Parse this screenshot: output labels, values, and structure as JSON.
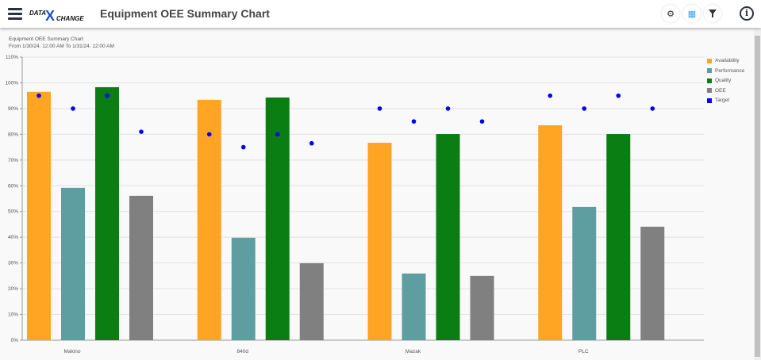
{
  "header": {
    "title": "Equipment OEE Summary Chart",
    "logo_text": "DATA X CHANGE",
    "icons": [
      "menu-icon",
      "gear-icon",
      "grid-icon",
      "filter-icon",
      "info-icon"
    ]
  },
  "chart_data": {
    "type": "bar",
    "title": "Equipment OEE Summary Chart",
    "subtitle": "From 1/30/24, 12:00 AM To 1/31/24, 12:00 AM",
    "categories": [
      "Makino",
      "840d",
      "Mazak",
      "PLC"
    ],
    "ylim": [
      0,
      110
    ],
    "yticks": [
      "0%",
      "10%",
      "20%",
      "30%",
      "40%",
      "50%",
      "60%",
      "70%",
      "80%",
      "90%",
      "100%",
      "110%"
    ],
    "grid": true,
    "legend_position": "right",
    "series": [
      {
        "name": "Availability",
        "color": "#ffa423",
        "values": [
          96.5,
          93.4,
          76.7,
          83.5
        ]
      },
      {
        "name": "Performance",
        "color": "#5f9ea0",
        "values": [
          59.2,
          39.8,
          25.9,
          51.8
        ]
      },
      {
        "name": "Quality",
        "color": "#0a7e12",
        "values": [
          98.3,
          94.3,
          80.1,
          80.1
        ]
      },
      {
        "name": "OEE",
        "color": "#808080",
        "values": [
          56.1,
          29.9,
          25.0,
          44.1
        ]
      }
    ],
    "target": {
      "name": "Target",
      "color": "#0000ff",
      "type": "scatter",
      "values": [
        [
          95,
          90,
          95,
          81
        ],
        [
          80,
          75,
          80,
          76.5
        ],
        [
          90,
          85,
          90,
          85
        ],
        [
          95,
          90,
          95,
          90
        ]
      ]
    }
  }
}
